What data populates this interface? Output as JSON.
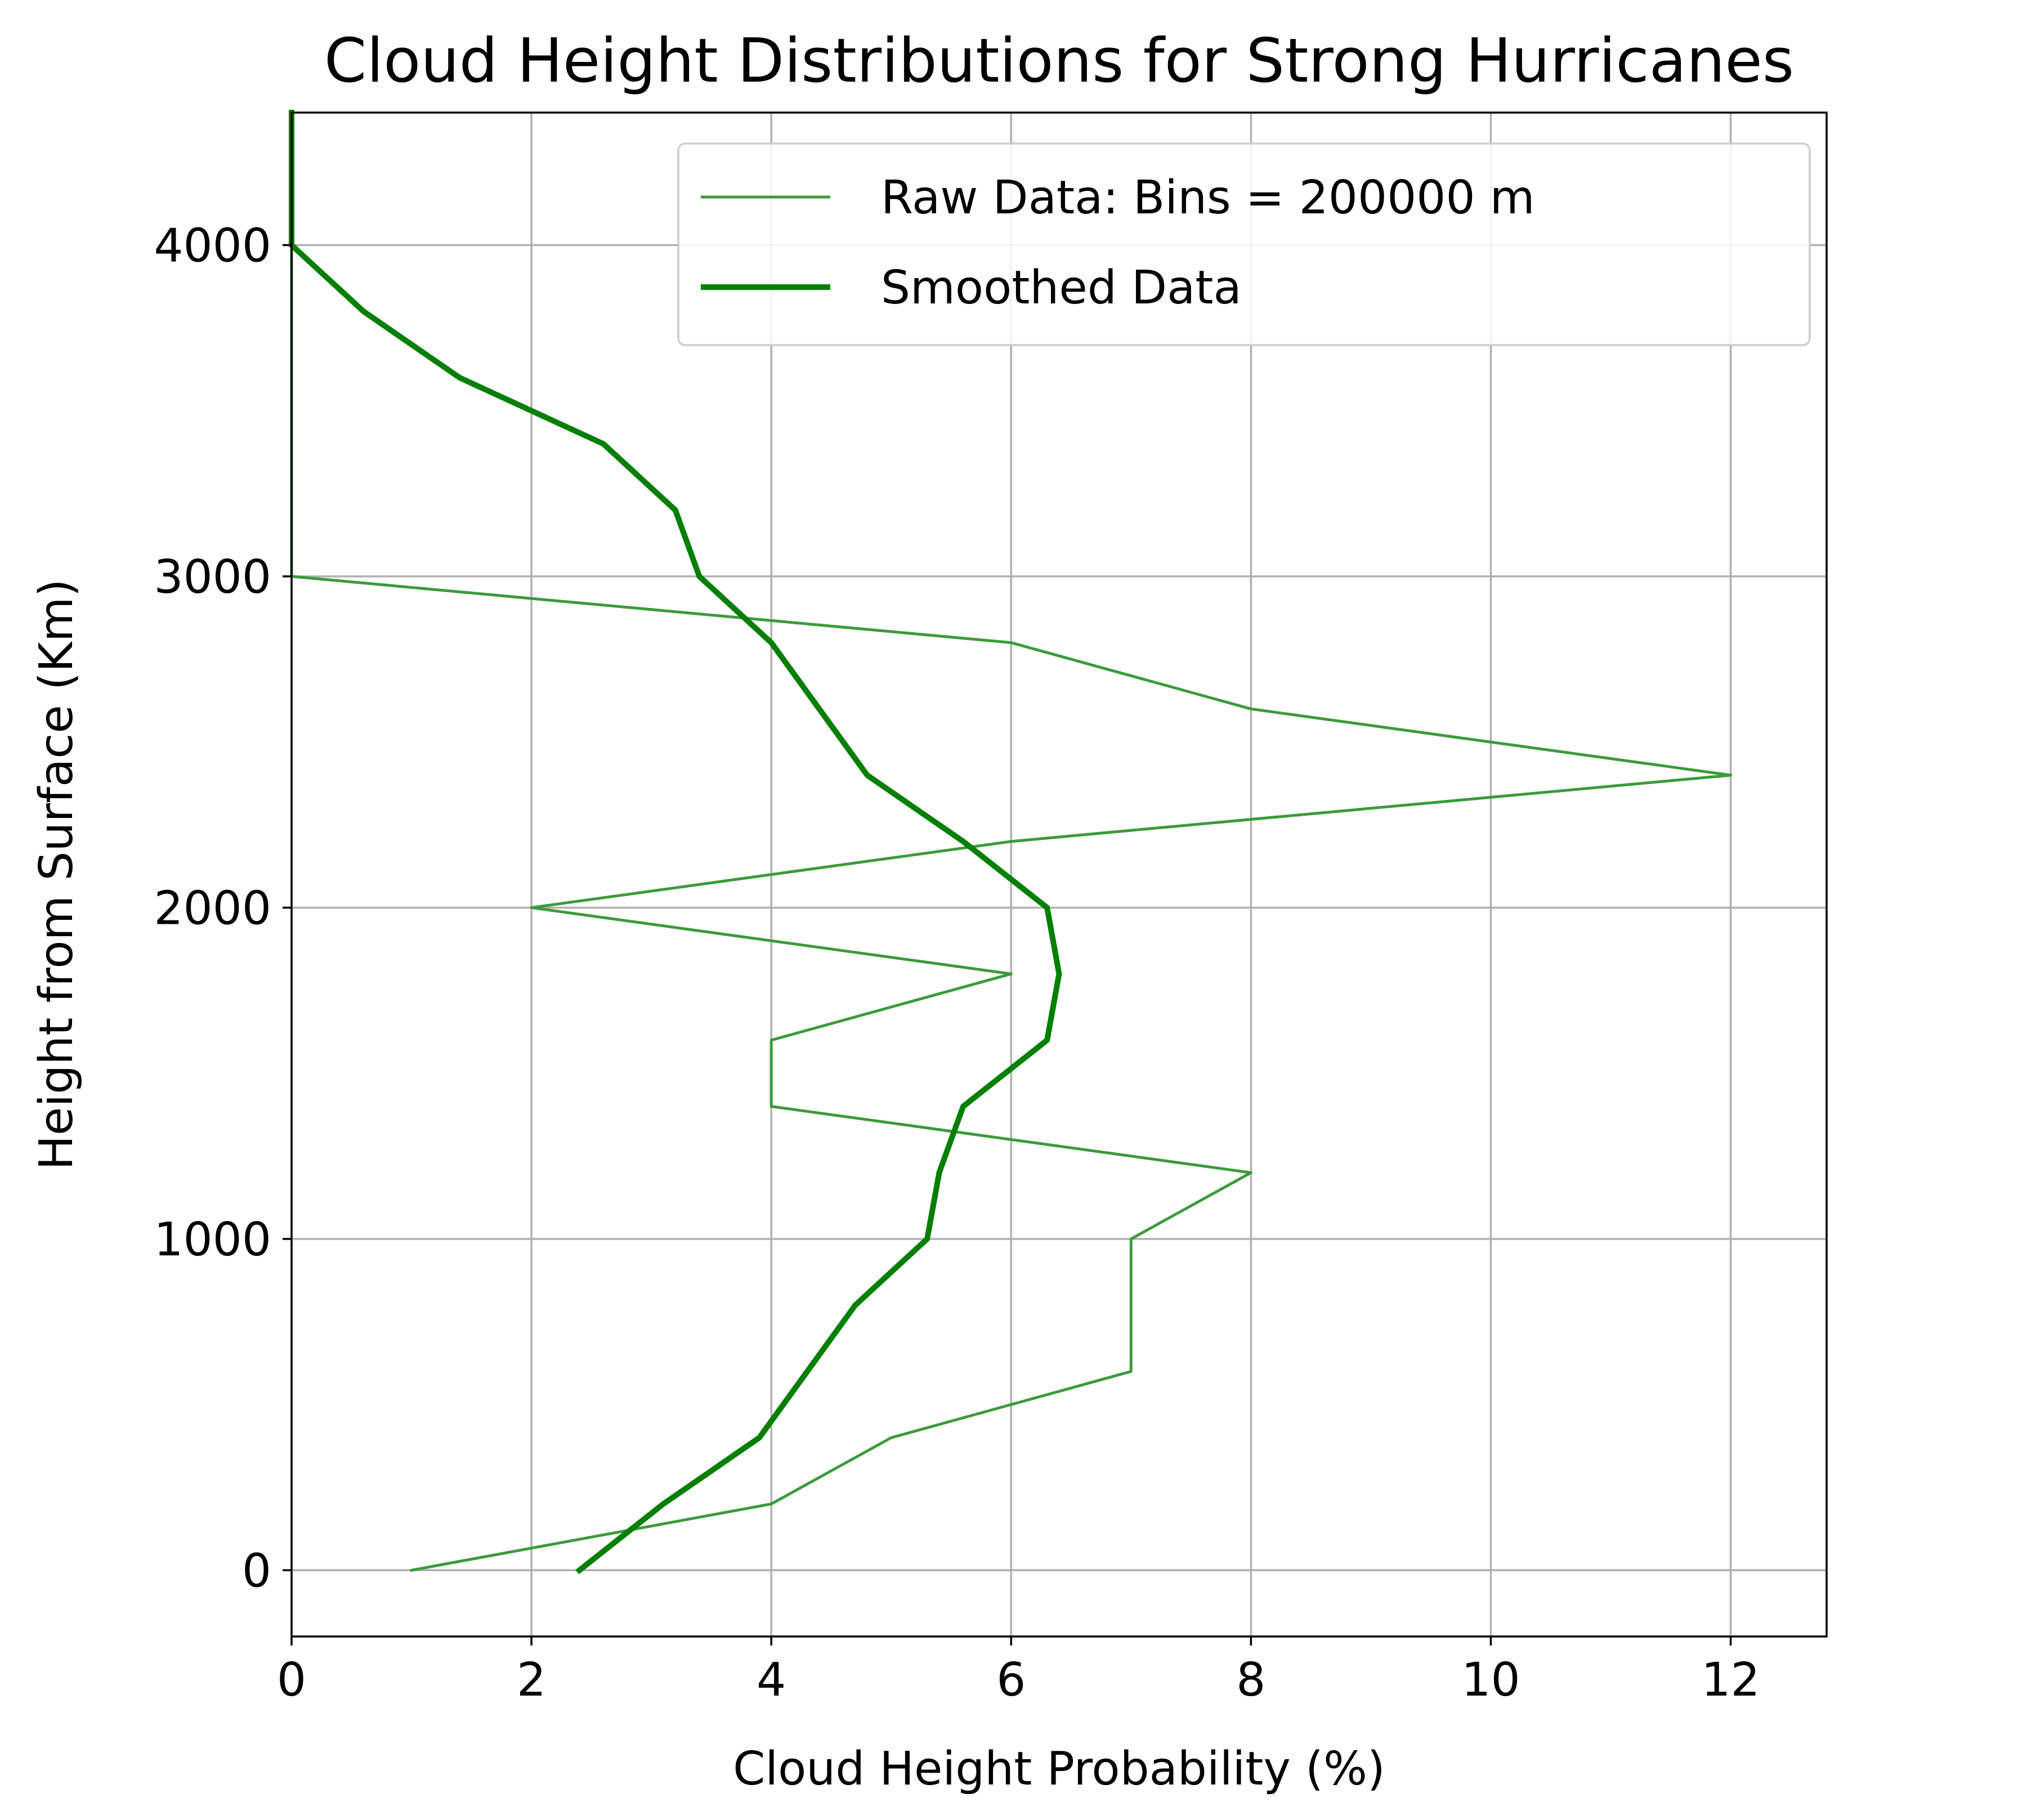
{
  "chart_data": {
    "type": "line",
    "title": "Cloud Height Distributions for Strong Hurricanes",
    "xlabel": "Cloud Height Probability (%)",
    "ylabel": "Height from Surface (Km)",
    "xlim": [
      0,
      12.8
    ],
    "ylim": [
      -200,
      4400
    ],
    "xticks": [
      0,
      2,
      4,
      6,
      8,
      10,
      12
    ],
    "yticks": [
      0,
      1000,
      2000,
      3000,
      4000
    ],
    "grid": true,
    "legend_position": "top-right",
    "series": [
      {
        "name": "Raw Data: Bins = 200000 m",
        "color": "#3c9a3c",
        "style": "thin",
        "points": [
          {
            "x": 1,
            "y": 0
          },
          {
            "x": 4,
            "y": 200
          },
          {
            "x": 5,
            "y": 400
          },
          {
            "x": 7,
            "y": 600
          },
          {
            "x": 7,
            "y": 800
          },
          {
            "x": 7,
            "y": 1000
          },
          {
            "x": 8,
            "y": 1200
          },
          {
            "x": 4,
            "y": 1400
          },
          {
            "x": 4,
            "y": 1600
          },
          {
            "x": 6,
            "y": 1800
          },
          {
            "x": 2,
            "y": 2000
          },
          {
            "x": 6,
            "y": 2200
          },
          {
            "x": 12,
            "y": 2400
          },
          {
            "x": 8,
            "y": 2600
          },
          {
            "x": 6,
            "y": 2800
          },
          {
            "x": 0,
            "y": 3000
          },
          {
            "x": 0,
            "y": 3200
          },
          {
            "x": 0,
            "y": 3400
          },
          {
            "x": 0,
            "y": 3600
          },
          {
            "x": 0,
            "y": 3800
          },
          {
            "x": 0,
            "y": 4000
          },
          {
            "x": 0,
            "y": 4200
          },
          {
            "x": 0,
            "y": 4400
          }
        ]
      },
      {
        "name": "Smoothed Data",
        "color": "#007f00",
        "style": "thick",
        "points": [
          {
            "x": 2.4,
            "y": 0
          },
          {
            "x": 3.1,
            "y": 200
          },
          {
            "x": 3.9,
            "y": 400
          },
          {
            "x": 4.7,
            "y": 800
          },
          {
            "x": 5.3,
            "y": 1000
          },
          {
            "x": 5.4,
            "y": 1200
          },
          {
            "x": 5.6,
            "y": 1400
          },
          {
            "x": 6.3,
            "y": 1600
          },
          {
            "x": 6.4,
            "y": 1800
          },
          {
            "x": 6.3,
            "y": 2000
          },
          {
            "x": 5.6,
            "y": 2200
          },
          {
            "x": 4.8,
            "y": 2400
          },
          {
            "x": 4.0,
            "y": 2800
          },
          {
            "x": 3.4,
            "y": 3000
          },
          {
            "x": 3.2,
            "y": 3200
          },
          {
            "x": 2.6,
            "y": 3400
          },
          {
            "x": 1.4,
            "y": 3600
          },
          {
            "x": 0.6,
            "y": 3800
          },
          {
            "x": 0.0,
            "y": 4000
          },
          {
            "x": 0.0,
            "y": 4200
          },
          {
            "x": 0.0,
            "y": 4400
          }
        ]
      }
    ]
  }
}
